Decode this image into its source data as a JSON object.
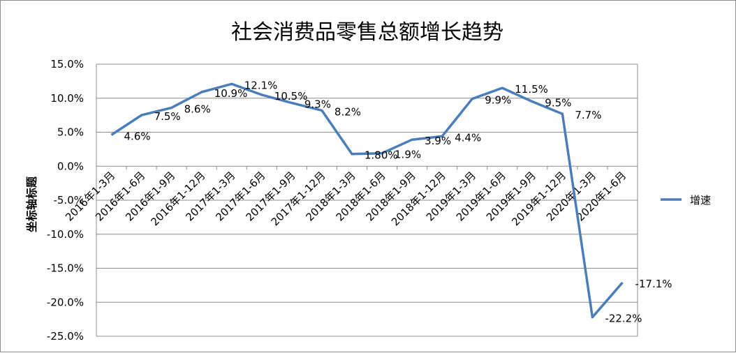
{
  "chart_data": {
    "type": "line",
    "title": "社会消费品零售总额增长趋势",
    "ylabel": "坐标轴标题",
    "xlabel": "",
    "ylim": [
      -25,
      15
    ],
    "ytick_step": 5,
    "ytick_labels": [
      "15.0%",
      "10.0%",
      "5.0%",
      "0.0%",
      "-5.0%",
      "-10.0%",
      "-15.0%",
      "-20.0%",
      "-25.0%"
    ],
    "grid": true,
    "legend_position": "right",
    "categories": [
      "2016年1-3月",
      "2016年1-6月",
      "2016年1-9月",
      "2016年1-12月",
      "2017年1-3月",
      "2017年1-6月",
      "2017年1-9月",
      "2017年1-12月",
      "2018年1-3月",
      "2018年1-6月",
      "2018年1-9月",
      "2018年1-12月",
      "2019年1-3月",
      "2019年1-6月",
      "2019年1-9月",
      "2019年1-12月",
      "2020年1-3月",
      "2020年1-6月"
    ],
    "series": [
      {
        "name": "增速",
        "color": "#4a7ebb",
        "values": [
          4.6,
          7.5,
          8.6,
          10.9,
          12.1,
          10.5,
          9.3,
          8.2,
          1.8,
          1.9,
          3.9,
          4.4,
          9.9,
          11.5,
          9.5,
          7.7,
          -22.2,
          -17.1
        ],
        "labels": [
          "4.6%",
          "7.5%",
          "8.6%",
          "10.9%",
          "12.1%",
          "10.5%",
          "9.3%",
          "8.2%",
          "1.80%",
          "1.9%",
          "3.9%",
          "4.4%",
          "9.9%",
          "11.5%",
          "9.5%",
          "7.7%",
          "-22.2%",
          "-17.1%"
        ]
      }
    ]
  }
}
